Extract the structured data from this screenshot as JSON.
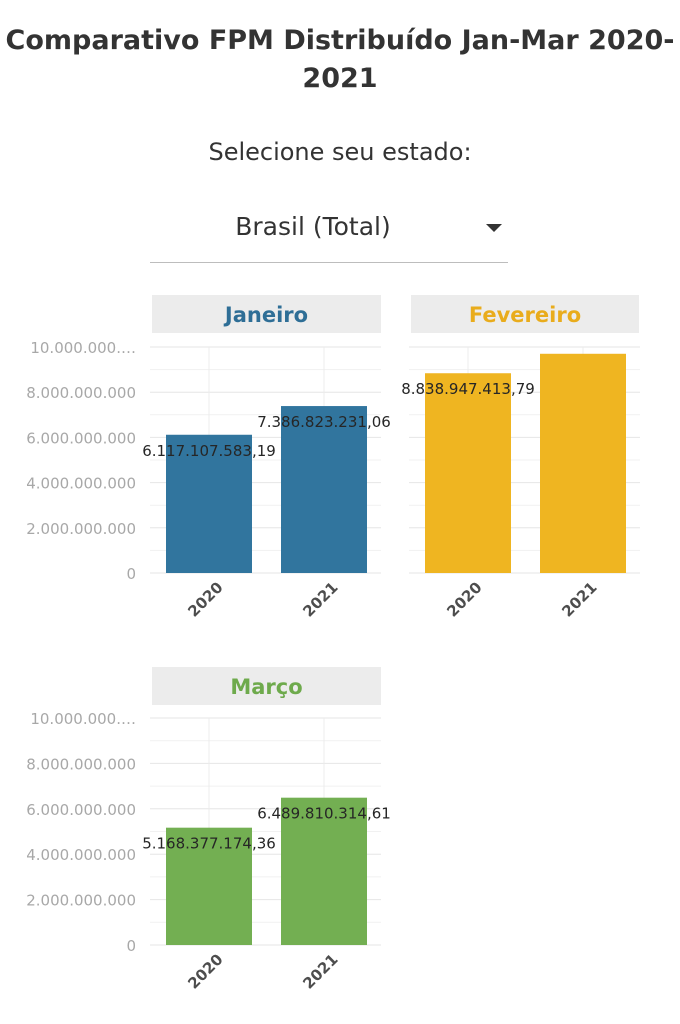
{
  "header": {
    "title": "Comparativo FPM Distribuído Jan-Mar 2020-2021",
    "select_label": "Selecione seu estado:"
  },
  "state_select": {
    "value": "Brasil (Total)",
    "icon": "caret-down-icon"
  },
  "chart_data": [
    {
      "type": "bar",
      "title": "Janeiro",
      "title_color": "#2e6e96",
      "bar_color": "#31759e",
      "categories": [
        "2020",
        "2021"
      ],
      "values": [
        6117107583.19,
        7386823231.06
      ],
      "value_labels": [
        "6.117.107.583,19",
        "7.386.823.231,06"
      ],
      "ylim": [
        0,
        10000000000
      ],
      "y_ticks": [
        "0",
        "2.000.000.000",
        "4.000.000.000",
        "6.000.000.000",
        "8.000.000.000",
        "10.000.000.…"
      ],
      "grid": true
    },
    {
      "type": "bar",
      "title": "Fevereiro",
      "title_color": "#e9ac1c",
      "bar_color": "#efb521",
      "categories": [
        "2020",
        "2021"
      ],
      "values": [
        8838947413.79,
        9700000000
      ],
      "value_labels": [
        "8.838.947.413,79",
        ""
      ],
      "ylim": [
        0,
        10000000000
      ],
      "y_ticks": [],
      "grid": true
    },
    {
      "type": "bar",
      "title": "Março",
      "title_color": "#6eaa4c",
      "bar_color": "#73af52",
      "categories": [
        "2020",
        "2021"
      ],
      "values": [
        5168377174.36,
        6489810314.61
      ],
      "value_labels": [
        "5.168.377.174,36",
        "6.489.810.314,61"
      ],
      "ylim": [
        0,
        10000000000
      ],
      "y_ticks": [
        "0",
        "2.000.000.000",
        "4.000.000.000",
        "6.000.000.000",
        "8.000.000.000",
        "10.000.000.…"
      ],
      "grid": true
    }
  ]
}
